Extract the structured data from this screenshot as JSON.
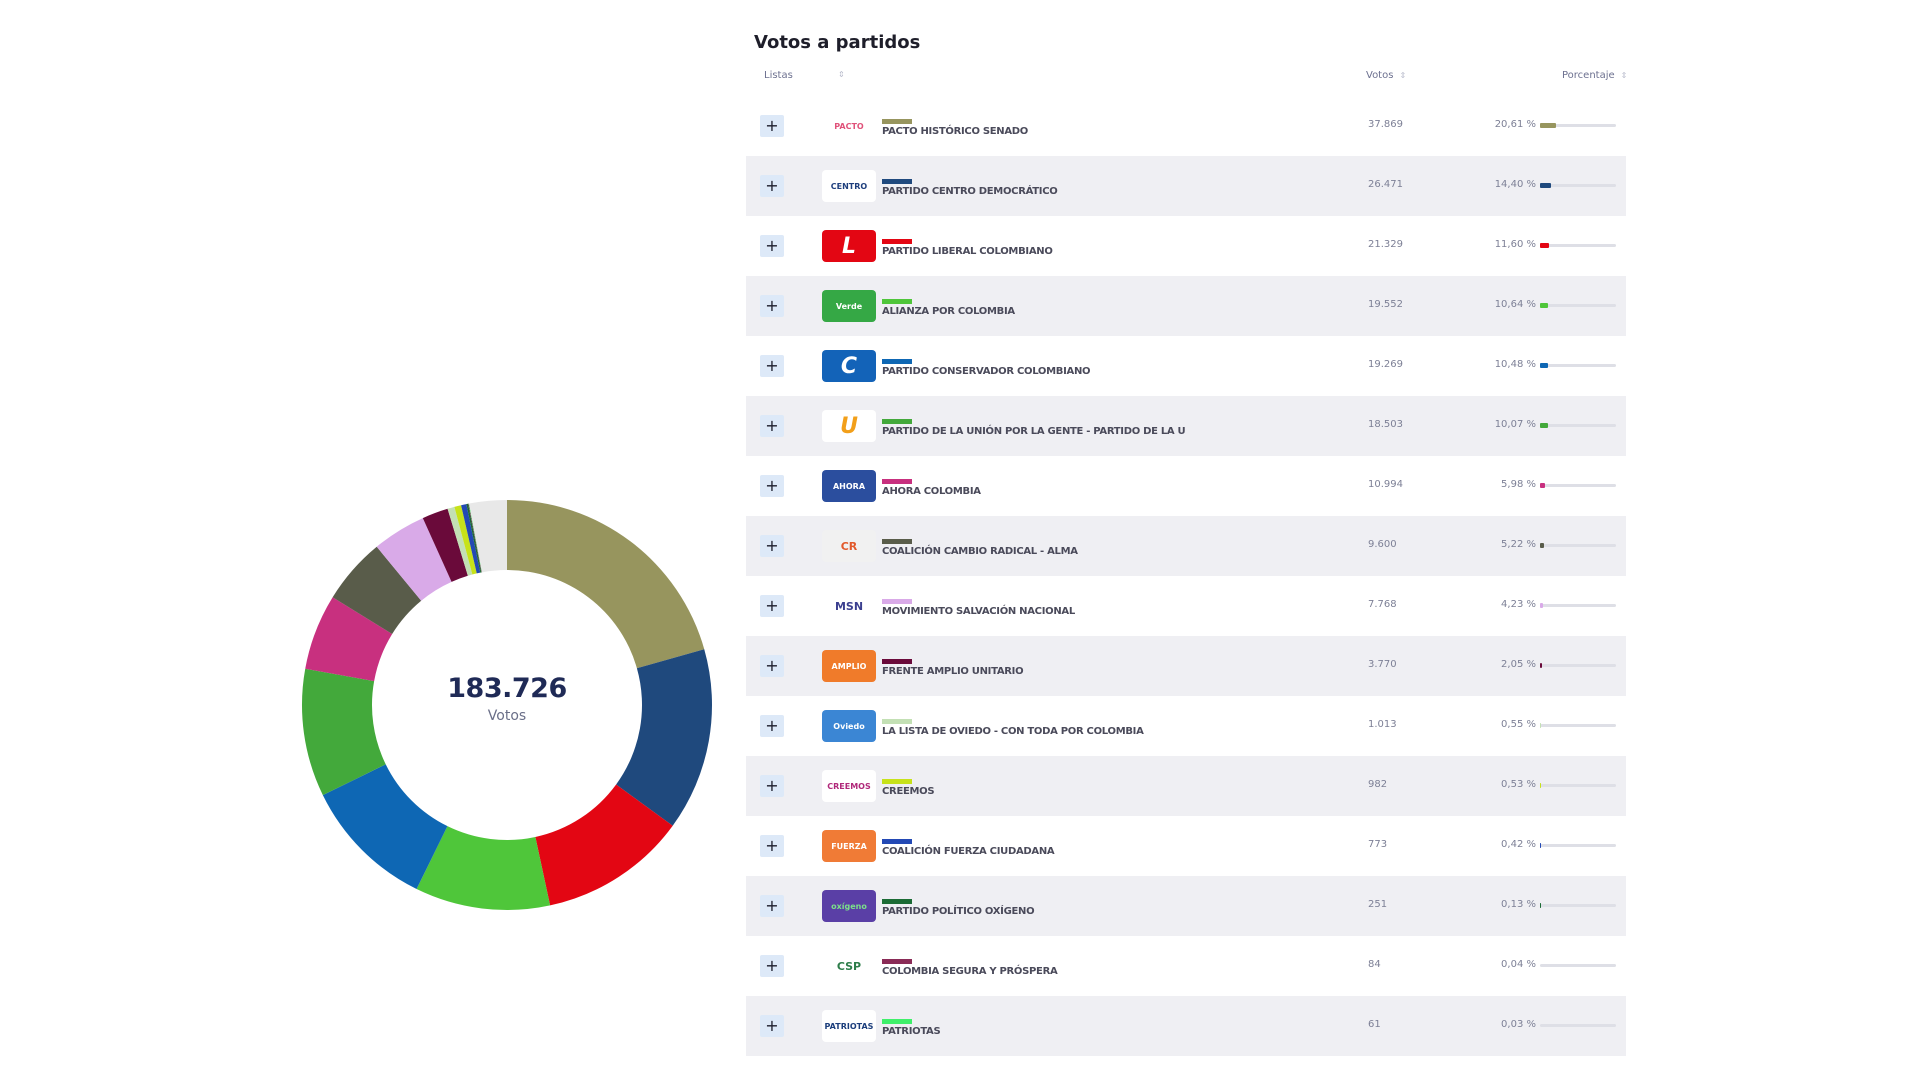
{
  "panel": {
    "title": "Votos a partidos",
    "headers": {
      "listas": "Listas",
      "votos": "Votos",
      "porcentaje": "Porcentaje"
    },
    "sort_icon": "⇕",
    "expand_symbol": "+"
  },
  "donut": {
    "total": "183.726",
    "label": "Votos",
    "other_color": "#e8e8e8"
  },
  "parties": [
    {
      "name": "PACTO HISTÓRICO SENADO",
      "votes": "37.869",
      "pct_label": "20,61 %",
      "pct": 20.61,
      "color": "#97955e",
      "logo_text": "PACTO",
      "logo_bg": "#ffffff",
      "logo_fg": "#e0527a"
    },
    {
      "name": "PARTIDO CENTRO DEMOCRÁTICO",
      "votes": "26.471",
      "pct_label": "14,40 %",
      "pct": 14.4,
      "color": "#1f497d",
      "logo_text": "CENTRO",
      "logo_bg": "#ffffff",
      "logo_fg": "#1f3f7d"
    },
    {
      "name": "PARTIDO LIBERAL COLOMBIANO",
      "votes": "21.329",
      "pct_label": "11,60 %",
      "pct": 11.6,
      "color": "#e30613",
      "logo_text": "L",
      "logo_bg": "#e30613",
      "logo_fg": "#ffffff"
    },
    {
      "name": "ALIANZA POR COLOMBIA",
      "votes": "19.552",
      "pct_label": "10,64 %",
      "pct": 10.64,
      "color": "#4fc63a",
      "logo_text": "Verde",
      "logo_bg": "#35a845",
      "logo_fg": "#ffffff"
    },
    {
      "name": "PARTIDO CONSERVADOR COLOMBIANO",
      "votes": "19.269",
      "pct_label": "10,48 %",
      "pct": 10.48,
      "color": "#0e67b4",
      "logo_text": "C",
      "logo_bg": "#1363b8",
      "logo_fg": "#ffffff"
    },
    {
      "name": "PARTIDO DE LA UNIÓN POR LA GENTE - PARTIDO DE LA U",
      "votes": "18.503",
      "pct_label": "10,07 %",
      "pct": 10.07,
      "color": "#43a93b",
      "logo_text": "U",
      "logo_bg": "#ffffff",
      "logo_fg": "#f29f1a"
    },
    {
      "name": "AHORA COLOMBIA",
      "votes": "10.994",
      "pct_label": "5,98 %",
      "pct": 5.98,
      "color": "#c8307f",
      "logo_text": "AHORA",
      "logo_bg": "#2b4e9e",
      "logo_fg": "#ffffff"
    },
    {
      "name": "COALICIÓN CAMBIO RADICAL - ALMA",
      "votes": "9.600",
      "pct_label": "5,22 %",
      "pct": 5.22,
      "color": "#595c4a",
      "logo_text": "CR",
      "logo_bg": "#f1f1f1",
      "logo_fg": "#e2592b"
    },
    {
      "name": "MOVIMIENTO SALVACIÓN NACIONAL",
      "votes": "7.768",
      "pct_label": "4,23 %",
      "pct": 4.23,
      "color": "#d9aae8",
      "logo_text": "MSN",
      "logo_bg": "#ffffff",
      "logo_fg": "#3b3f8f"
    },
    {
      "name": "FRENTE AMPLIO UNITARIO",
      "votes": "3.770",
      "pct_label": "2,05 %",
      "pct": 2.05,
      "color": "#6a0a3a",
      "logo_text": "AMPLIO",
      "logo_bg": "#f07b2a",
      "logo_fg": "#ffffff"
    },
    {
      "name": "LA LISTA DE OVIEDO - CON TODA POR COLOMBIA",
      "votes": "1.013",
      "pct_label": "0,55 %",
      "pct": 0.55,
      "color": "#c3e0b5",
      "logo_text": "Oviedo",
      "logo_bg": "#3b86d4",
      "logo_fg": "#ffffff"
    },
    {
      "name": "CREEMOS",
      "votes": "982",
      "pct_label": "0,53 %",
      "pct": 0.53,
      "color": "#c7e21a",
      "logo_text": "CREEMOS",
      "logo_bg": "#ffffff",
      "logo_fg": "#b0287a"
    },
    {
      "name": "COALICIÓN FUERZA CIUDADANA",
      "votes": "773",
      "pct_label": "0,42 %",
      "pct": 0.42,
      "color": "#2349b5",
      "logo_text": "FUERZA",
      "logo_bg": "#f07b36",
      "logo_fg": "#ffffff"
    },
    {
      "name": "PARTIDO POLÍTICO OXÍGENO",
      "votes": "251",
      "pct_label": "0,13 %",
      "pct": 0.13,
      "color": "#1b6b35",
      "logo_text": "oxígeno",
      "logo_bg": "#5a3fa6",
      "logo_fg": "#7be08a"
    },
    {
      "name": "COLOMBIA SEGURA Y PRÓSPERA",
      "votes": "84",
      "pct_label": "0,04 %",
      "pct": 0.04,
      "color": "#8a2b57",
      "logo_text": "CSP",
      "logo_bg": "#ffffff",
      "logo_fg": "#2d7d4a"
    },
    {
      "name": "PATRIOTAS",
      "votes": "61",
      "pct_label": "0,03 %",
      "pct": 0.03,
      "color": "#3ff06a",
      "logo_text": "PATRIOTAS",
      "logo_bg": "#ffffff",
      "logo_fg": "#1c3e7c"
    }
  ],
  "chart_data": {
    "type": "pie",
    "title": "Votos a partidos",
    "center_label": "183.726 Votos",
    "total": 183726,
    "categories": [
      "PACTO HISTÓRICO SENADO",
      "PARTIDO CENTRO DEMOCRÁTICO",
      "PARTIDO LIBERAL COLOMBIANO",
      "ALIANZA POR COLOMBIA",
      "PARTIDO CONSERVADOR COLOMBIANO",
      "PARTIDO DE LA UNIÓN POR LA GENTE - PARTIDO DE LA U",
      "AHORA COLOMBIA",
      "COALICIÓN CAMBIO RADICAL - ALMA",
      "MOVIMIENTO SALVACIÓN NACIONAL",
      "FRENTE AMPLIO UNITARIO",
      "LA LISTA DE OVIEDO - CON TODA POR COLOMBIA",
      "CREEMOS",
      "COALICIÓN FUERZA CIUDADANA",
      "PARTIDO POLÍTICO OXÍGENO",
      "COLOMBIA SEGURA Y PRÓSPERA",
      "PATRIOTAS"
    ],
    "values": [
      37869,
      26471,
      21329,
      19552,
      19269,
      18503,
      10994,
      9600,
      7768,
      3770,
      1013,
      982,
      773,
      251,
      84,
      61
    ],
    "percentages": [
      20.61,
      14.4,
      11.6,
      10.64,
      10.48,
      10.07,
      5.98,
      5.22,
      4.23,
      2.05,
      0.55,
      0.53,
      0.42,
      0.13,
      0.04,
      0.03
    ],
    "donut": true
  }
}
